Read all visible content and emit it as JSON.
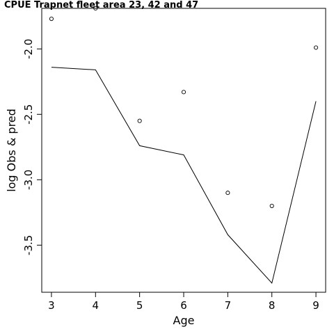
{
  "chart_data": {
    "type": "scatter",
    "title": "CPUE Trapnet fleet area 23, 42 and 47",
    "xlabel": "Age",
    "ylabel": "log Obs & pred",
    "xlim": [
      2.78,
      9.22
    ],
    "ylim": [
      -3.86,
      -1.69
    ],
    "x_ticks": [
      3,
      4,
      5,
      6,
      7,
      8,
      9
    ],
    "x_tick_labels": [
      "3",
      "4",
      "5",
      "6",
      "7",
      "8",
      "9"
    ],
    "y_ticks": [
      -3.5,
      -3.0,
      -2.5,
      -2.0
    ],
    "y_tick_labels": [
      "-3.5",
      "-3.0",
      "-2.5",
      "-2.0"
    ],
    "grid": false,
    "series": [
      {
        "kind": "points",
        "x": [
          3,
          4,
          5,
          6,
          7,
          8,
          9
        ],
        "y": [
          -1.77,
          -1.69,
          -2.55,
          -2.33,
          -3.1,
          -3.2,
          -1.99
        ]
      },
      {
        "kind": "line",
        "x": [
          3,
          4,
          5,
          6,
          7,
          8,
          9
        ],
        "y": [
          -2.14,
          -2.16,
          -2.74,
          -2.81,
          -3.42,
          -3.79,
          -2.4
        ]
      }
    ]
  }
}
